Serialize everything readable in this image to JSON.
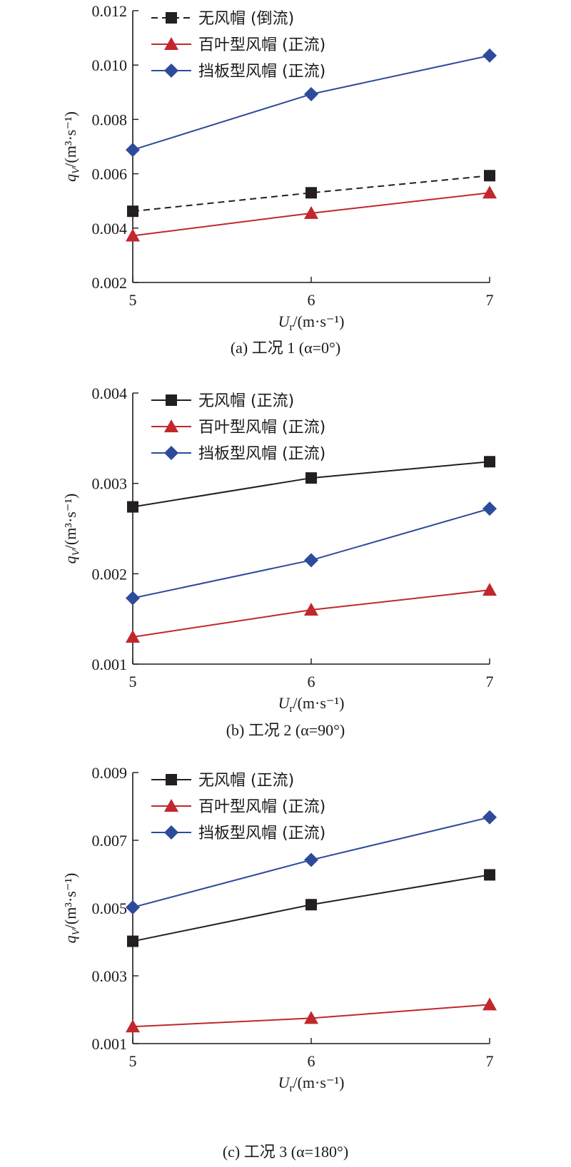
{
  "chart_data": [
    {
      "type": "line",
      "caption": "(a) 工况 1 (α=0°)",
      "xlabel": "U_r/(m·s⁻¹)",
      "ylabel": "q_V/(m³·s⁻¹)",
      "xlim": [
        5,
        7
      ],
      "ylim": [
        0.002,
        0.012
      ],
      "x": [
        5,
        6,
        7
      ],
      "x_tick_labels": [
        "5",
        "6",
        "7"
      ],
      "y_ticks": [
        0.002,
        0.004,
        0.006,
        0.008,
        0.01,
        0.012
      ],
      "y_tick_labels": [
        "0.002",
        "0.004",
        "0.006",
        "0.008",
        "0.010",
        "0.012"
      ],
      "legend_position": "top-left",
      "grid": false,
      "series": [
        {
          "name": "无风帽 (倒流)",
          "values": [
            0.00462,
            0.0053,
            0.00593
          ],
          "color": "#231f20",
          "marker": "square",
          "dashed": true
        },
        {
          "name": "百叶型风帽 (正流)",
          "values": [
            0.00372,
            0.00455,
            0.0053
          ],
          "color": "#c1272d",
          "marker": "triangle",
          "dashed": false
        },
        {
          "name": "挡板型风帽 (正流)",
          "values": [
            0.00688,
            0.00893,
            0.01035
          ],
          "color": "#2e4b9b",
          "marker": "diamond",
          "dashed": false
        }
      ]
    },
    {
      "type": "line",
      "caption": "(b) 工况 2 (α=90°)",
      "xlabel": "U_r/(m·s⁻¹)",
      "ylabel": "q_V/(m³·s⁻¹)",
      "xlim": [
        5,
        7
      ],
      "ylim": [
        0.001,
        0.004
      ],
      "x": [
        5,
        6,
        7
      ],
      "x_tick_labels": [
        "5",
        "6",
        "7"
      ],
      "y_ticks": [
        0.001,
        0.002,
        0.003,
        0.004
      ],
      "y_tick_labels": [
        "0.001",
        "0.002",
        "0.003",
        "0.004"
      ],
      "legend_position": "top-left",
      "grid": false,
      "series": [
        {
          "name": "无风帽 (正流)",
          "values": [
            0.00274,
            0.00306,
            0.00324
          ],
          "color": "#231f20",
          "marker": "square",
          "dashed": false
        },
        {
          "name": "百叶型风帽 (正流)",
          "values": [
            0.0013,
            0.0016,
            0.00182
          ],
          "color": "#c1272d",
          "marker": "triangle",
          "dashed": false
        },
        {
          "name": "挡板型风帽 (正流)",
          "values": [
            0.00173,
            0.00215,
            0.00272
          ],
          "color": "#2e4b9b",
          "marker": "diamond",
          "dashed": false
        }
      ]
    },
    {
      "type": "line",
      "caption": "(c) 工况 3 (α=180°)",
      "xlabel": "U_r/(m·s⁻¹)",
      "ylabel": "q_V/(m³·s⁻¹)",
      "xlim": [
        5,
        7
      ],
      "ylim": [
        0.001,
        0.009
      ],
      "x": [
        5,
        6,
        7
      ],
      "x_tick_labels": [
        "5",
        "6",
        "7"
      ],
      "y_ticks": [
        0.001,
        0.003,
        0.005,
        0.007,
        0.009
      ],
      "y_tick_labels": [
        "0.001",
        "0.003",
        "0.005",
        "0.007",
        "0.009"
      ],
      "legend_position": "top-left",
      "grid": false,
      "series": [
        {
          "name": "无风帽 (正流)",
          "values": [
            0.00402,
            0.0051,
            0.00598
          ],
          "color": "#231f20",
          "marker": "square",
          "dashed": false
        },
        {
          "name": "百叶型风帽 (正流)",
          "values": [
            0.0015,
            0.00175,
            0.00215
          ],
          "color": "#c1272d",
          "marker": "triangle",
          "dashed": false
        },
        {
          "name": "挡板型风帽 (正流)",
          "values": [
            0.00502,
            0.00642,
            0.00768
          ],
          "color": "#2e4b9b",
          "marker": "diamond",
          "dashed": false
        }
      ]
    }
  ]
}
